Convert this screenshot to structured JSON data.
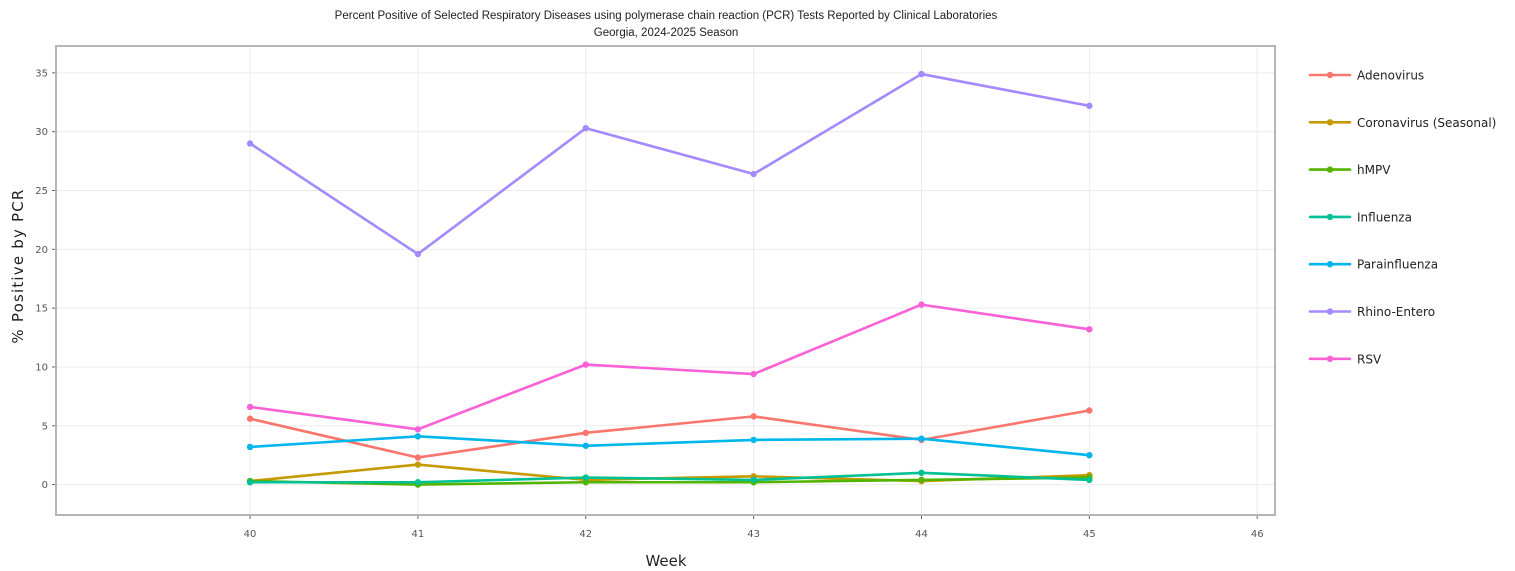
{
  "chart_data": {
    "type": "line",
    "title": "Percent Positive of Selected Respiratory Diseases using polymerase chain reaction (PCR) Tests Reported by Clinical Laboratories",
    "subtitle": "Georgia, 2024-2025 Season",
    "xlabel": "Week",
    "ylabel": "% Positive by PCR",
    "x": [
      40,
      41,
      42,
      43,
      44,
      45
    ],
    "xlim": [
      38.85,
      46.1
    ],
    "ylim": [
      -2.5,
      37.2
    ],
    "x_ticks": [
      40,
      41,
      42,
      43,
      44,
      45,
      46
    ],
    "y_ticks": [
      0,
      5,
      10,
      15,
      20,
      25,
      30,
      35
    ],
    "grid": true,
    "legend_position": "right",
    "series": [
      {
        "name": "Adenovirus",
        "color": "#F8766D",
        "values": [
          5.6,
          2.3,
          4.4,
          5.8,
          3.8,
          6.3
        ]
      },
      {
        "name": "Coronavirus (Seasonal)",
        "color": "#C49A00",
        "values": [
          0.3,
          1.7,
          0.4,
          0.7,
          0.3,
          0.8
        ]
      },
      {
        "name": "hMPV",
        "color": "#53B400",
        "values": [
          0.3,
          0.0,
          0.2,
          0.2,
          0.4,
          0.6
        ]
      },
      {
        "name": "Influenza",
        "color": "#00C094",
        "values": [
          0.2,
          0.2,
          0.6,
          0.4,
          1.0,
          0.4
        ]
      },
      {
        "name": "Parainfluenza",
        "color": "#00B6EB",
        "values": [
          3.2,
          4.1,
          3.3,
          3.8,
          3.9,
          2.5
        ]
      },
      {
        "name": "Rhino-Entero",
        "color": "#A58AFF",
        "values": [
          29.0,
          19.6,
          30.3,
          26.4,
          34.9,
          32.2
        ]
      },
      {
        "name": "RSV",
        "color": "#FB61D7",
        "values": [
          6.6,
          4.7,
          10.2,
          9.4,
          15.3,
          13.2
        ]
      }
    ]
  }
}
